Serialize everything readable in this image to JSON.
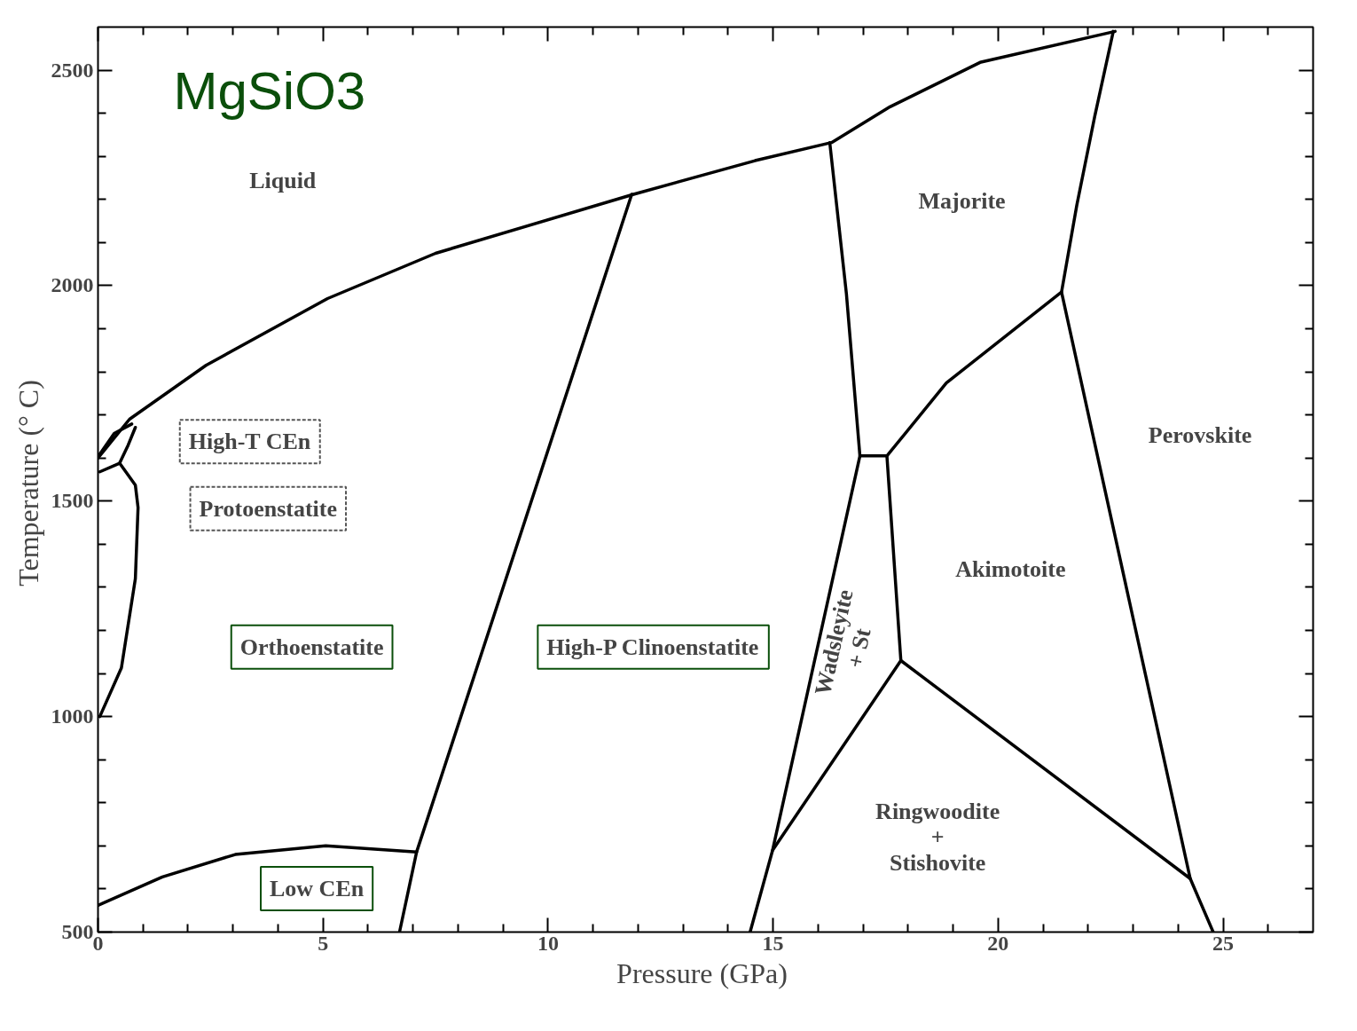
{
  "chart_data": {
    "type": "line",
    "title": "MgSiO3",
    "xlabel": "Pressure  (GPa)",
    "ylabel": "Temperature  (° C)",
    "xlim": [
      0,
      27
    ],
    "ylim": [
      500,
      2600
    ],
    "xticks": [
      0,
      {
        "value": 1,
        "label": null
      },
      {
        "value": 2,
        "label": null
      },
      {
        "value": 3,
        "label": null
      },
      {
        "value": 4,
        "label": null
      },
      5,
      {
        "value": 6,
        "label": null
      },
      {
        "value": 7,
        "label": null
      },
      {
        "value": 8,
        "label": null
      },
      {
        "value": 9,
        "label": null
      },
      10,
      {
        "value": 11,
        "label": null
      },
      {
        "value": 12,
        "label": null
      },
      {
        "value": 13,
        "label": null
      },
      {
        "value": 14,
        "label": null
      },
      15,
      {
        "value": 16,
        "label": null
      },
      {
        "value": 17,
        "label": null
      },
      {
        "value": 18,
        "label": null
      },
      {
        "value": 19,
        "label": null
      },
      20,
      {
        "value": 21,
        "label": null
      },
      {
        "value": 22,
        "label": null
      },
      {
        "value": 23,
        "label": null
      },
      {
        "value": 24,
        "label": null
      },
      25,
      {
        "value": 26,
        "label": null
      }
    ],
    "yticks": [
      500,
      {
        "value": 600,
        "label": null
      },
      {
        "value": 700,
        "label": null
      },
      {
        "value": 800,
        "label": null
      },
      {
        "value": 900,
        "label": null
      },
      1000,
      {
        "value": 1100,
        "label": null
      },
      {
        "value": 1200,
        "label": null
      },
      {
        "value": 1300,
        "label": null
      },
      {
        "value": 1400,
        "label": null
      },
      1500,
      {
        "value": 1600,
        "label": null
      },
      {
        "value": 1700,
        "label": null
      },
      {
        "value": 1800,
        "label": null
      },
      {
        "value": 1900,
        "label": null
      },
      2000,
      {
        "value": 2100,
        "label": null
      },
      {
        "value": 2200,
        "label": null
      },
      {
        "value": 2300,
        "label": null
      },
      {
        "value": 2400,
        "label": null
      },
      2500
    ],
    "grid": false,
    "marker": "none",
    "line_style": "solid",
    "series": [
      {
        "color": "#000000",
        "x": [
          0,
          0.7,
          2.4,
          5.1,
          7.5,
          11.9,
          14.6,
          16.3,
          17.6,
          19.6,
          22.6
        ],
        "values": [
          1600,
          1690,
          1815,
          1970,
          2075,
          2212,
          2290,
          2332,
          2415,
          2518,
          2590
        ]
      },
      {
        "color": "#000000",
        "x": [
          0.04,
          0.36,
          0.75
        ],
        "values": [
          1609,
          1657,
          1679
        ]
      },
      {
        "color": "#000000",
        "x": [
          0.04,
          0.48,
          0.67,
          0.83
        ],
        "values": [
          1568,
          1588,
          1630,
          1671
        ]
      },
      {
        "color": "#000000",
        "x": [
          0.48,
          0.83,
          0.89,
          0.83,
          0.52,
          0.04
        ],
        "values": [
          1588,
          1537,
          1485,
          1320,
          1113,
          1000
        ]
      },
      {
        "color": "#000000",
        "x": [
          0,
          1.43,
          3.05,
          5.06,
          7.08
        ],
        "values": [
          562,
          628,
          680,
          700,
          686
        ]
      },
      {
        "color": "#000000",
        "x": [
          6.7,
          7.08,
          11.86
        ],
        "values": [
          500,
          686,
          2212
        ]
      },
      {
        "color": "#000000",
        "x": [
          14.49,
          14.99,
          16.93,
          16.63,
          16.26
        ],
        "values": [
          500,
          690,
          1605,
          1981,
          2332
        ]
      },
      {
        "color": "#000000",
        "x": [
          16.93,
          17.53,
          17.84
        ],
        "values": [
          1605,
          1605,
          1130
        ]
      },
      {
        "color": "#000000",
        "x": [
          14.99,
          17.84,
          24.27,
          24.78
        ],
        "values": [
          690,
          1130,
          624,
          500
        ]
      },
      {
        "color": "#000000",
        "x": [
          17.53,
          18.85,
          21.41,
          21.75,
          22.15,
          22.56
        ],
        "values": [
          1605,
          1774,
          1985,
          2187,
          2394,
          2590
        ]
      },
      {
        "color": "#000000",
        "x": [
          21.41,
          24.27
        ],
        "values": [
          1985,
          624
        ]
      }
    ],
    "annotations": [
      "Liquid",
      "Majorite",
      "Perovskite",
      "Akimotoite",
      "Ringwoodite\n+\nStishovite",
      "Wadsleyite\n+ St",
      "Orthoenstatite",
      "High-P Clinoenstatite",
      "Low CEn",
      "High-T CEn",
      "Protoenstatite"
    ]
  }
}
